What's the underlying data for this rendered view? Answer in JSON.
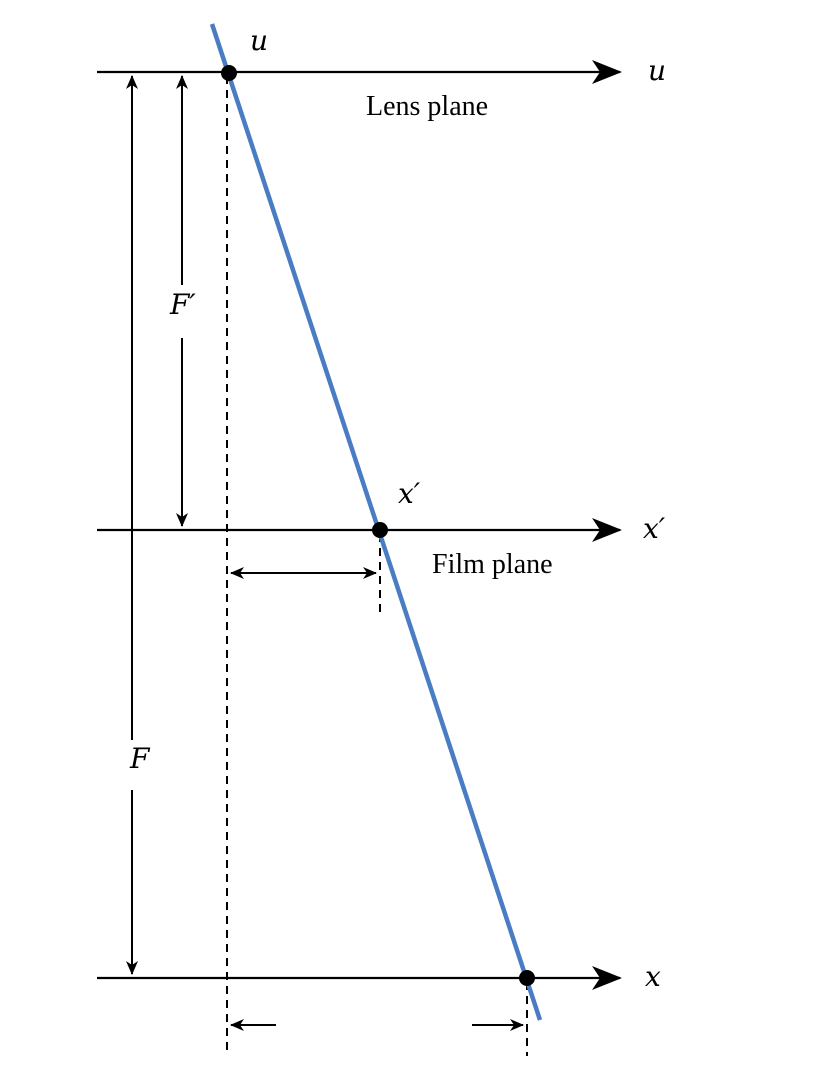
{
  "labels": {
    "u_point": "u",
    "u_axis": "u",
    "lens_plane": "Lens plane",
    "f_prime": "F′",
    "x_prime_point": "x′",
    "x_prime_axis": "x′",
    "film_plane": "Film plane",
    "f": "F",
    "x_axis": "x"
  },
  "colors": {
    "ray": "#4a7cc4",
    "ink": "#000000"
  }
}
